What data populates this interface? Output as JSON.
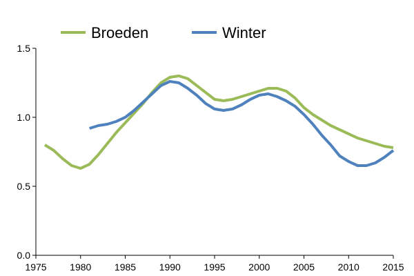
{
  "chart_data": {
    "type": "line",
    "title": "",
    "xlabel": "",
    "ylabel": "",
    "xlim": [
      1975,
      2015
    ],
    "ylim": [
      0.0,
      1.5
    ],
    "grid": false,
    "legend_position": "top",
    "x_ticks": [
      1975,
      1980,
      1985,
      1990,
      1995,
      2000,
      2005,
      2010,
      2015
    ],
    "x_tick_labels": [
      "1975",
      "1980",
      "1985",
      "1990",
      "1995",
      "2000",
      "2005",
      "2010",
      "2015"
    ],
    "y_ticks": [
      0.0,
      0.5,
      1.0,
      1.5
    ],
    "y_tick_labels": [
      "0.0",
      "0.5",
      "1.0",
      "1.5"
    ],
    "series": [
      {
        "name": "Broeden",
        "color": "#9BBB59",
        "x": [
          1976,
          1977,
          1978,
          1979,
          1980,
          1981,
          1982,
          1983,
          1984,
          1985,
          1986,
          1987,
          1988,
          1989,
          1990,
          1991,
          1992,
          1993,
          1994,
          1995,
          1996,
          1997,
          1998,
          1999,
          2000,
          2001,
          2002,
          2003,
          2004,
          2005,
          2006,
          2007,
          2008,
          2009,
          2010,
          2011,
          2012,
          2013,
          2014,
          2015
        ],
        "y": [
          0.8,
          0.76,
          0.7,
          0.65,
          0.63,
          0.66,
          0.73,
          0.81,
          0.89,
          0.96,
          1.03,
          1.1,
          1.18,
          1.25,
          1.29,
          1.3,
          1.28,
          1.23,
          1.18,
          1.13,
          1.12,
          1.13,
          1.15,
          1.17,
          1.19,
          1.21,
          1.21,
          1.19,
          1.14,
          1.07,
          1.02,
          0.98,
          0.94,
          0.91,
          0.88,
          0.85,
          0.83,
          0.81,
          0.79,
          0.78
        ]
      },
      {
        "name": "Winter",
        "color": "#4F81BD",
        "x": [
          1981,
          1982,
          1983,
          1984,
          1985,
          1986,
          1987,
          1988,
          1989,
          1990,
          1991,
          1992,
          1993,
          1994,
          1995,
          1996,
          1997,
          1998,
          1999,
          2000,
          2001,
          2002,
          2003,
          2004,
          2005,
          2006,
          2007,
          2008,
          2009,
          2010,
          2011,
          2012,
          2013,
          2014,
          2015
        ],
        "y": [
          0.92,
          0.94,
          0.95,
          0.97,
          1.0,
          1.05,
          1.11,
          1.17,
          1.23,
          1.26,
          1.25,
          1.21,
          1.16,
          1.1,
          1.06,
          1.05,
          1.06,
          1.09,
          1.13,
          1.16,
          1.17,
          1.15,
          1.12,
          1.08,
          1.02,
          0.95,
          0.87,
          0.8,
          0.72,
          0.68,
          0.65,
          0.65,
          0.67,
          0.71,
          0.76
        ]
      }
    ]
  }
}
